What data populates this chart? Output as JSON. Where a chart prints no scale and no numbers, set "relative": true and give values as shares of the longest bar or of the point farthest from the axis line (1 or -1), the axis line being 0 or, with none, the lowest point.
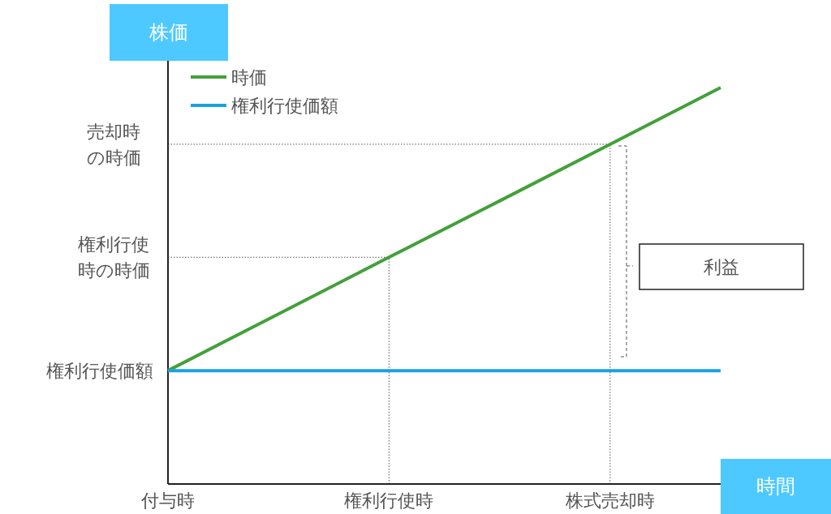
{
  "chart_data": {
    "type": "line",
    "relative": true,
    "xlabel": "時間",
    "ylabel": "株価",
    "categories": [
      "付与時",
      null,
      "権利行使時",
      null,
      "株式売却時",
      null
    ],
    "series": [
      {
        "name": "時価",
        "color": "#43a03a",
        "values": [
          0.286,
          0.429,
          0.572,
          0.714,
          0.857,
          1
        ]
      },
      {
        "name": "権利行使価額",
        "color": "#1ba1e2",
        "values": [
          0.286,
          0.286,
          0.286,
          0.286,
          0.286,
          0.286
        ]
      }
    ],
    "ref_lines": [
      {
        "axis": "y",
        "value": 0.857,
        "label": "売却時の時価",
        "line_style": "dotted",
        "color": "#555555"
      },
      {
        "axis": "y",
        "value": 0.572,
        "label": "権利行使時の時価",
        "line_style": "dotted",
        "color": "#555555"
      },
      {
        "axis": "x",
        "value": "権利行使時",
        "line_style": "dotted",
        "color": "#555555"
      },
      {
        "axis": "x",
        "value": "株式売却時",
        "line_style": "dotted",
        "color": "#555555"
      }
    ],
    "annotations": [
      {
        "text": "権利行使価額",
        "x": "付与時",
        "y": 0.286
      },
      "利益"
    ],
    "legend": "top left",
    "line_style": "solid"
  }
}
